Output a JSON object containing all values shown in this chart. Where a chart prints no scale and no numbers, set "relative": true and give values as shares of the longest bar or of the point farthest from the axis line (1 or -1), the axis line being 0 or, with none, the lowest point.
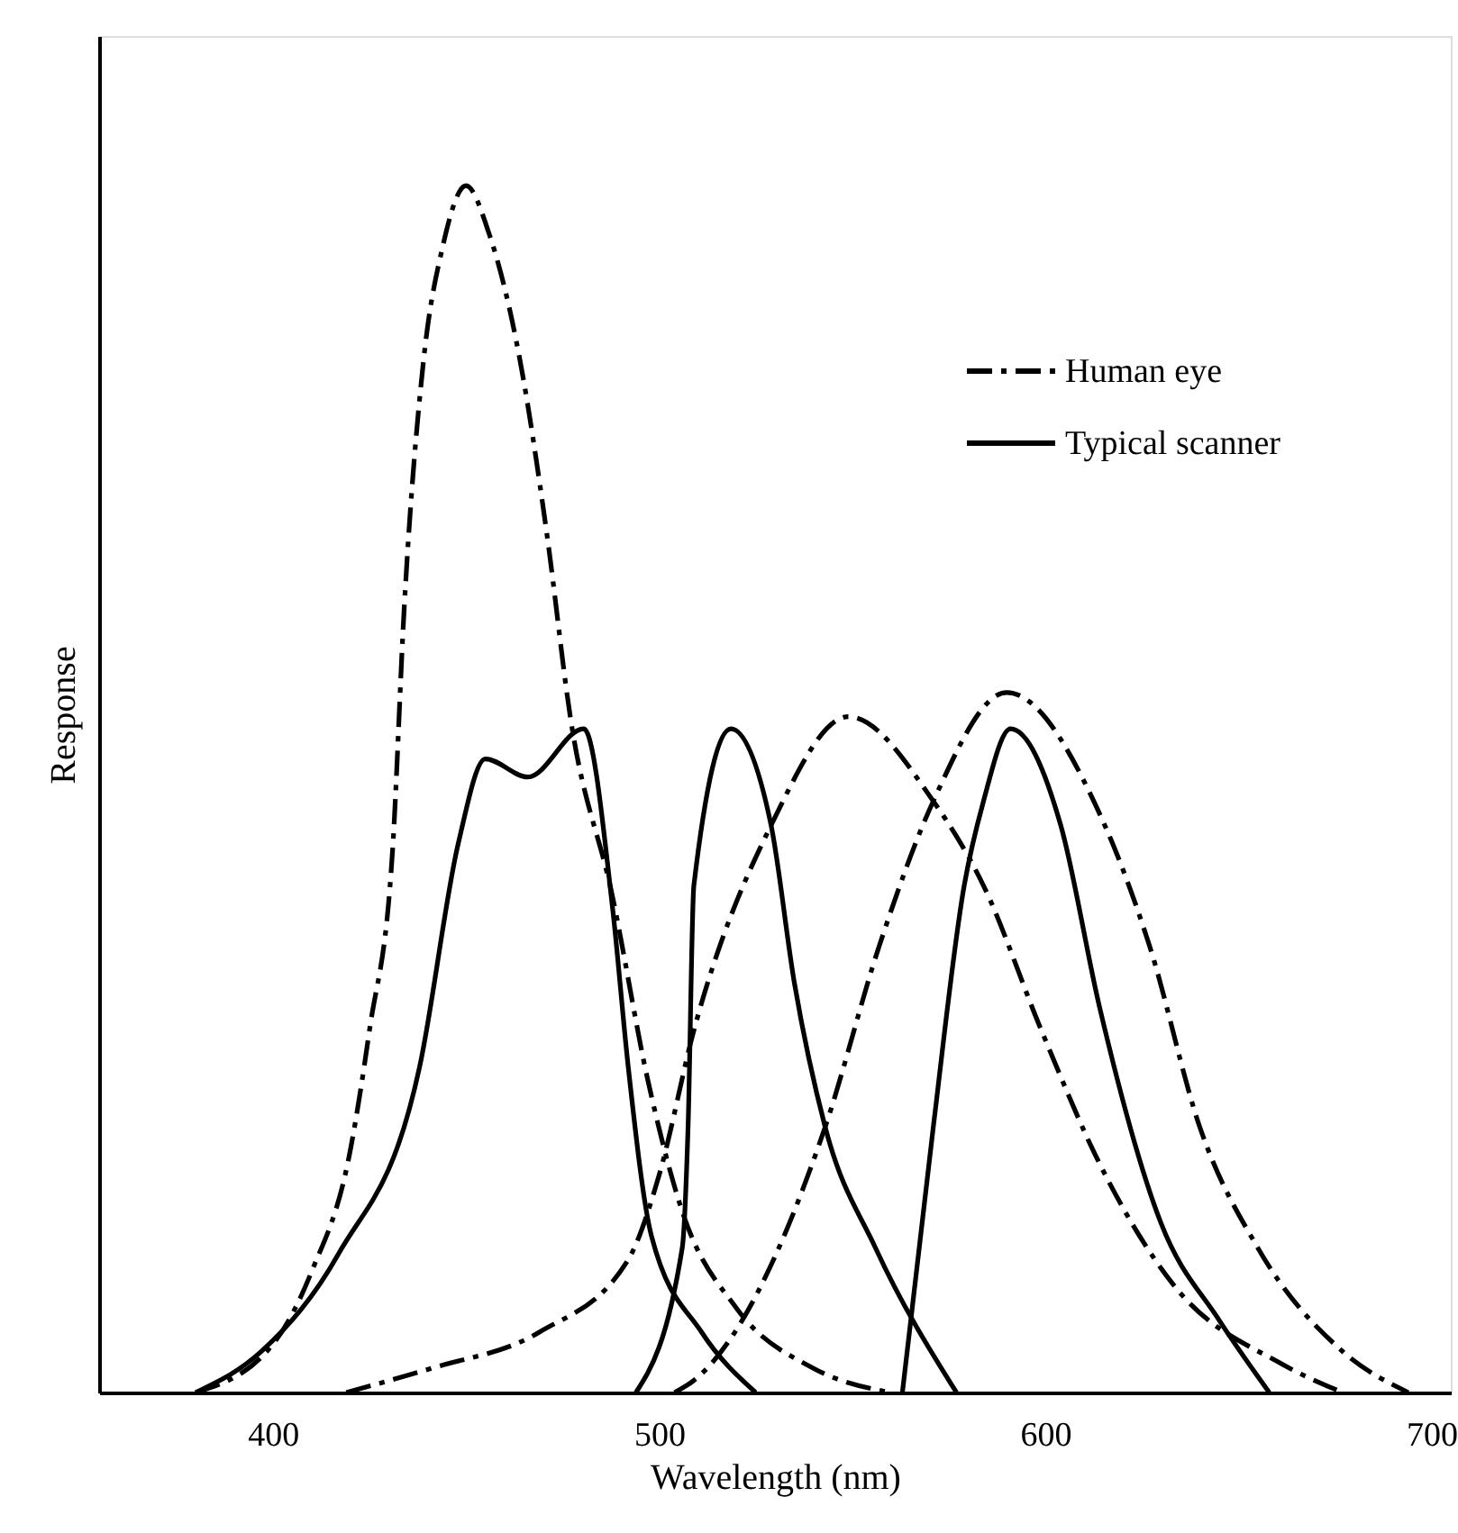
{
  "chart_data": {
    "type": "line",
    "relative": true,
    "xlabel": "Wavelength (nm)",
    "ylabel": "Response",
    "xlim": [
      355,
      705
    ],
    "xticks": [
      400,
      500,
      600,
      700
    ],
    "legend": "top right",
    "grid": false,
    "marker": "none",
    "series": [
      {
        "name": "Human eye",
        "color": "#000000",
        "line_style": "dashed",
        "x": [
          380,
          400,
          410,
          420,
          425,
          431,
          434,
          439,
          444,
          450,
          456,
          464,
          471,
          477,
          488,
          497,
          506,
          520,
          540,
          560
        ],
        "values": [
          0,
          0.04,
          0.1,
          0.2,
          0.3,
          0.45,
          0.65,
          0.855,
          0.95,
          1.0,
          0.96,
          0.855,
          0.71,
          0.56,
          0.41,
          0.26,
          0.15,
          0.07,
          0.02,
          0
        ]
      },
      {
        "color": "#000000",
        "line_style": "dashed",
        "x": [
          419,
          441,
          469,
          492,
          500,
          509,
          529,
          549,
          571,
          584,
          599,
          614,
          633,
          661,
          677
        ],
        "values": [
          0,
          0.02,
          0.05,
          0.11,
          0.18,
          0.3,
          0.47,
          0.56,
          0.49,
          0.42,
          0.3,
          0.19,
          0.09,
          0.024,
          0
        ]
      },
      {
        "color": "#000000",
        "line_style": "dashed",
        "x": [
          504,
          509,
          543,
          557,
          571,
          590,
          614,
          627,
          640,
          655,
          677,
          694
        ],
        "values": [
          0,
          0.01,
          0.22,
          0.37,
          0.49,
          0.58,
          0.48,
          0.37,
          0.22,
          0.12,
          0.034,
          0
        ]
      },
      {
        "name": "Typical scanner",
        "color": "#000000",
        "line_style": "solid",
        "x": [
          380,
          397,
          417,
          438,
          448,
          455,
          466,
          480.5,
          488,
          492,
          498,
          511,
          525
        ],
        "values": [
          0,
          0.034,
          0.115,
          0.27,
          0.455,
          0.525,
          0.51,
          0.55,
          0.4,
          0.27,
          0.13,
          0.05,
          0
        ]
      },
      {
        "color": "#000000",
        "line_style": "solid",
        "x": [
          494,
          506,
          507.5,
          509,
          518.6,
          529,
          535,
          543,
          556,
          577
        ],
        "values": [
          0,
          0.12,
          0.22,
          0.42,
          0.55,
          0.47,
          0.34,
          0.22,
          0.12,
          0
        ]
      },
      {
        "color": "#000000",
        "line_style": "solid",
        "x": [
          563,
          571,
          579,
          584,
          591,
          604,
          614,
          630,
          645,
          658
        ],
        "values": [
          0,
          0.22,
          0.42,
          0.49,
          0.55,
          0.47,
          0.32,
          0.14,
          0.06,
          0
        ]
      }
    ]
  }
}
